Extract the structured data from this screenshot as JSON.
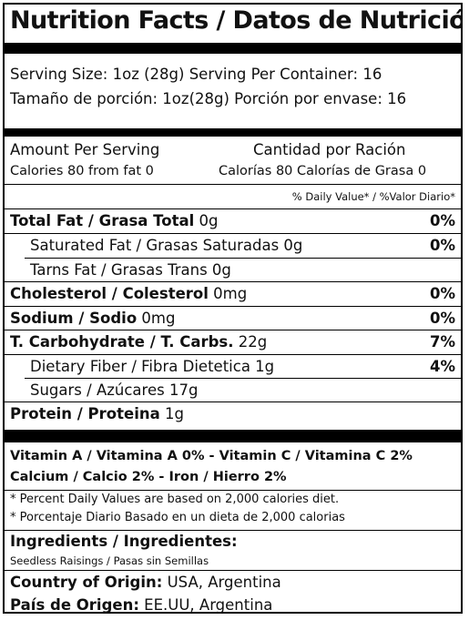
{
  "title": "Nutrition Facts / Datos de Nutrición",
  "serving": {
    "line_en": "Serving Size: 1oz (28g) Serving Per Container: 16",
    "line_es": "Tamaño de porción: 1oz(28g) Porción por envase: 16"
  },
  "amount": {
    "header_en": "Amount Per Serving",
    "header_es": "Cantidad por Ración",
    "calories_en": "Calories 80  from fat 0",
    "calories_es": "Calorías 80 Calorías de Grasa 0",
    "dv_header": "% Daily Value* / %Valor Diario*"
  },
  "nutrients": [
    {
      "bold": "Total Fat / Grasa Total",
      "rest": " 0g",
      "pct": "0%",
      "indent": false
    },
    {
      "bold": "",
      "rest": "Saturated Fat / Grasas Saturadas    0g",
      "pct": "0%",
      "indent": true
    },
    {
      "bold": "",
      "rest": "Tarns Fat / Grasas Trans 0g",
      "pct": "",
      "indent": true
    },
    {
      "bold": "Cholesterol / Colesterol",
      "rest": " 0mg",
      "pct": "0%",
      "indent": false
    },
    {
      "bold": "Sodium / Sodio",
      "rest": " 0mg",
      "pct": "0%",
      "indent": false
    },
    {
      "bold": "T. Carbohydrate / T. Carbs.",
      "rest": " 22g",
      "pct": "7%",
      "indent": false
    },
    {
      "bold": "",
      "rest": "Dietary Fiber / Fibra Dietetica 1g",
      "pct": "4%",
      "indent": true
    },
    {
      "bold": "",
      "rest": "Sugars / Azúcares 17g",
      "pct": "",
      "indent": true
    },
    {
      "bold": "Protein / Proteina",
      "rest": " 1g",
      "pct": "",
      "indent": false
    }
  ],
  "vitamins": {
    "line1": "Vitamin A / Vitamina A 0%  - Vitamin C / Vitamina C 2%",
    "line2": "Calcium / Calcio 2% - Iron / Hierro 2%"
  },
  "footnotes": {
    "en": "* Percent Daily Values are based on 2,000 calories diet.",
    "es": "* Porcentaje Diario Basado en un dieta de 2,000 calorias"
  },
  "ingredients": {
    "heading": "Ingredients / Ingredientes:",
    "text": "Seedless Raisings / Pasas sin Semillas"
  },
  "origin": {
    "en_label": "Country of Origin:",
    "en_value": " USA, Argentina",
    "es_label": "País de Origen:",
    "es_value": " EE.UU, Argentina"
  }
}
